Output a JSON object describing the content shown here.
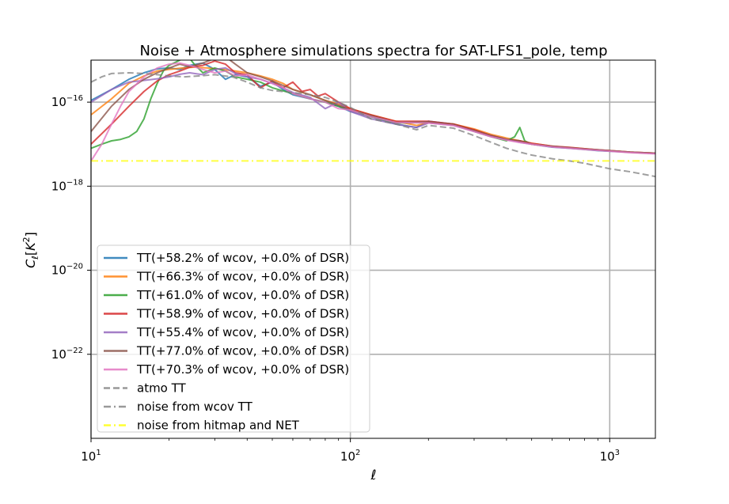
{
  "chart_data": {
    "type": "line",
    "title": "Noise + Atmosphere simulations spectra for SAT-LFS1_pole, temp",
    "xlabel": "ℓ",
    "ylabel": "C_ℓ[K^2]",
    "xscale": "log",
    "yscale": "log",
    "xlim": [
      10,
      1500
    ],
    "ylim": [
      1e-24,
      1e-15
    ],
    "grid": true,
    "legend_position": "lower-left",
    "x_ticks": [
      {
        "value": 10,
        "label": "10",
        "sup": "1"
      },
      {
        "value": 100,
        "label": "10",
        "sup": "2"
      },
      {
        "value": 1000,
        "label": "10",
        "sup": "3"
      }
    ],
    "y_ticks": [
      {
        "value": 1e-16,
        "label": "10",
        "sup": "−16"
      },
      {
        "value": 1e-18,
        "label": "10",
        "sup": "−18"
      },
      {
        "value": 1e-20,
        "label": "10",
        "sup": "−20"
      },
      {
        "value": 1e-22,
        "label": "10",
        "sup": "−22"
      }
    ],
    "series": [
      {
        "name": "TT(+58.2% of wcov, +0.0% of DSR)",
        "color": "#1f77b4",
        "style": "solid",
        "x": [
          10,
          12,
          14,
          16,
          18,
          20,
          22,
          24,
          27,
          30,
          33,
          36,
          40,
          45,
          50,
          55,
          60,
          70,
          80,
          90,
          100,
          120,
          150,
          180,
          200,
          250,
          300,
          350,
          400,
          450,
          500,
          600,
          700,
          800,
          900,
          1000,
          1200,
          1500
        ],
        "y": [
          1.1e-16,
          2e-16,
          3.5e-16,
          5e-16,
          6.2e-16,
          6.5e-16,
          6e-16,
          7.5e-16,
          8.5e-16,
          6e-16,
          3.5e-16,
          4.5e-16,
          4e-16,
          2.4e-16,
          3e-16,
          2e-16,
          1.5e-16,
          1.2e-16,
          1e-16,
          8e-17,
          6e-17,
          4.5e-17,
          3e-17,
          2.5e-17,
          3.5e-17,
          3e-17,
          2.2e-17,
          1.6e-17,
          1.3e-17,
          1.2e-17,
          1e-17,
          8.5e-18,
          8e-18,
          7.5e-18,
          7e-18,
          6.8e-18,
          6.4e-18,
          6e-18
        ]
      },
      {
        "name": "TT(+66.3% of wcov, +0.0% of DSR)",
        "color": "#ff7f0e",
        "style": "solid",
        "x": [
          10,
          12,
          14,
          16,
          18,
          20,
          22,
          25,
          28,
          32,
          36,
          40,
          45,
          50,
          55,
          60,
          70,
          80,
          90,
          100,
          120,
          150,
          180,
          200,
          250,
          300,
          350,
          400,
          450,
          500,
          600,
          700,
          800,
          900,
          1000,
          1200,
          1500
        ],
        "y": [
          5e-17,
          1.2e-16,
          2.8e-16,
          4.2e-16,
          5.5e-16,
          6e-16,
          6.4e-16,
          6.8e-16,
          6.5e-16,
          6e-16,
          5.5e-16,
          5e-16,
          4.2e-16,
          3.5e-16,
          2.8e-16,
          2e-16,
          1.5e-16,
          1.1e-16,
          9e-17,
          7e-17,
          5e-17,
          3.5e-17,
          2.8e-17,
          3.2e-17,
          3e-17,
          2.3e-17,
          1.7e-17,
          1.4e-17,
          1.2e-17,
          1.05e-17,
          9e-18,
          8.3e-18,
          7.8e-18,
          7.3e-18,
          7e-18,
          6.5e-18,
          6.1e-18
        ]
      },
      {
        "name": "TT(+61.0% of wcov, +0.0% of DSR)",
        "color": "#2ca02c",
        "style": "solid",
        "x": [
          10,
          11,
          12,
          13,
          14,
          15,
          16,
          17,
          18,
          19,
          20,
          22,
          23,
          24,
          25,
          27,
          30,
          33,
          36,
          40,
          45,
          50,
          60,
          70,
          80,
          100,
          120,
          150,
          200,
          250,
          300,
          350,
          400,
          430,
          450,
          470,
          500,
          600,
          700,
          800,
          1000,
          1200,
          1500
        ],
        "y": [
          8e-18,
          1e-17,
          1.2e-17,
          1.3e-17,
          1.5e-17,
          2e-17,
          4e-17,
          1.2e-16,
          2.8e-16,
          5.5e-16,
          7.5e-16,
          1e-15,
          1.2e-15,
          1.1e-15,
          8e-16,
          5e-16,
          6.5e-16,
          5.5e-16,
          4e-16,
          3.5e-16,
          3e-16,
          2.2e-16,
          1.6e-16,
          1.2e-16,
          1e-16,
          6.5e-17,
          4.5e-17,
          3.2e-17,
          3.3e-17,
          3e-17,
          2e-17,
          1.5e-17,
          1.2e-17,
          1.5e-17,
          2.5e-17,
          1.2e-17,
          1e-17,
          8.8e-18,
          8.2e-18,
          7.6e-18,
          6.9e-18,
          6.4e-18,
          6e-18
        ]
      },
      {
        "name": "TT(+58.9% of wcov, +0.0% of DSR)",
        "color": "#d62728",
        "style": "solid",
        "x": [
          10,
          12,
          14,
          16,
          18,
          20,
          22,
          24,
          27,
          30,
          33,
          36,
          40,
          45,
          50,
          55,
          60,
          65,
          70,
          75,
          80,
          90,
          100,
          120,
          150,
          200,
          250,
          300,
          350,
          400,
          450,
          500,
          600,
          700,
          800,
          1000,
          1200,
          1500
        ],
        "y": [
          1e-17,
          3e-17,
          8e-17,
          1.8e-16,
          3.2e-16,
          4.5e-16,
          5.5e-16,
          6.8e-16,
          7.5e-16,
          9.5e-16,
          8e-16,
          5e-16,
          4.5e-16,
          2.2e-16,
          3.2e-16,
          2.2e-16,
          3e-16,
          1.8e-16,
          2e-16,
          1.4e-16,
          1.6e-16,
          1e-16,
          7e-17,
          5e-17,
          3.5e-17,
          3.5e-17,
          3e-17,
          2.2e-17,
          1.6e-17,
          1.3e-17,
          1.2e-17,
          1.05e-17,
          9e-18,
          8.4e-18,
          7.8e-18,
          7e-18,
          6.5e-18,
          6.1e-18
        ]
      },
      {
        "name": "TT(+55.4% of wcov, +0.0% of DSR)",
        "color": "#9467bd",
        "style": "solid",
        "x": [
          10,
          12,
          14,
          16,
          18,
          20,
          22,
          24,
          27,
          30,
          33,
          36,
          40,
          45,
          50,
          55,
          60,
          70,
          80,
          90,
          100,
          120,
          150,
          180,
          200,
          250,
          300,
          350,
          400,
          450,
          500,
          600,
          700,
          800,
          1000,
          1200,
          1500
        ],
        "y": [
          1e-16,
          2e-16,
          3e-16,
          3.3e-16,
          3.6e-16,
          4e-16,
          4.6e-16,
          5e-16,
          4.5e-16,
          6e-16,
          6.5e-16,
          4.8e-16,
          4e-16,
          3.5e-16,
          2.8e-16,
          2.2e-16,
          1.7e-16,
          1.3e-16,
          7e-17,
          1e-16,
          6e-17,
          4e-17,
          3e-17,
          2.5e-17,
          3.2e-17,
          2.8e-17,
          2e-17,
          1.5e-17,
          1.3e-17,
          1.1e-17,
          1e-17,
          8.7e-18,
          8.1e-18,
          7.6e-18,
          6.9e-18,
          6.4e-18,
          6e-18
        ]
      },
      {
        "name": "TT(+77.0% of wcov, +0.0% of DSR)",
        "color": "#8c564b",
        "style": "solid",
        "x": [
          10,
          12,
          14,
          16,
          18,
          20,
          22,
          24,
          27,
          30,
          32,
          34,
          36,
          40,
          45,
          50,
          55,
          60,
          70,
          80,
          90,
          100,
          120,
          150,
          200,
          250,
          300,
          350,
          400,
          450,
          500,
          600,
          700,
          800,
          1000,
          1200,
          1500
        ],
        "y": [
          2e-17,
          8e-17,
          2e-16,
          3.5e-16,
          5e-16,
          6.5e-16,
          8e-16,
          7e-16,
          8.5e-16,
          1.1e-15,
          1.2e-15,
          1.05e-15,
          8e-16,
          5e-16,
          4e-16,
          3.2e-16,
          2.5e-16,
          2e-16,
          1.5e-16,
          1.1e-16,
          8.5e-17,
          6.5e-17,
          4.8e-17,
          3.3e-17,
          3.4e-17,
          2.9e-17,
          2.1e-17,
          1.6e-17,
          1.3e-17,
          1.2e-17,
          1e-17,
          8.9e-18,
          8.2e-18,
          7.7e-18,
          7e-18,
          6.5e-18,
          6.1e-18
        ]
      },
      {
        "name": "TT(+70.3% of wcov, +0.0% of DSR)",
        "color": "#e377c2",
        "style": "solid",
        "x": [
          10,
          11,
          12,
          13,
          14,
          16,
          18,
          20,
          22,
          24,
          27,
          30,
          33,
          36,
          40,
          45,
          50,
          55,
          60,
          70,
          80,
          90,
          100,
          120,
          150,
          200,
          250,
          300,
          350,
          400,
          450,
          500,
          600,
          700,
          800,
          1000,
          1200,
          1500
        ],
        "y": [
          4e-18,
          1e-17,
          3e-17,
          8e-17,
          1.8e-16,
          4e-16,
          6.5e-16,
          8e-16,
          8.5e-16,
          7.5e-16,
          6e-16,
          5e-16,
          5.5e-16,
          4.2e-16,
          4.5e-16,
          3.5e-16,
          2.8e-16,
          2.2e-16,
          1.6e-16,
          1.2e-16,
          1e-16,
          7e-17,
          6.5e-17,
          4.5e-17,
          3.3e-17,
          3.2e-17,
          2.8e-17,
          2e-17,
          1.5e-17,
          1.25e-17,
          1.1e-17,
          1e-17,
          8.6e-18,
          8e-18,
          7.5e-18,
          6.8e-18,
          6.3e-18,
          5.9e-18
        ]
      },
      {
        "name": "atmo TT",
        "color": "#7f7f7f",
        "style": "dashed",
        "x": [
          10,
          11,
          12,
          14,
          16,
          18,
          20,
          23,
          26,
          30,
          35,
          40,
          45,
          50,
          60,
          70,
          80,
          90,
          100,
          120,
          150,
          180,
          200,
          250,
          300,
          350,
          400,
          450,
          500,
          600,
          700,
          800,
          900,
          1000,
          1200,
          1500
        ],
        "y": [
          3e-16,
          4e-16,
          4.8e-16,
          5e-16,
          4.8e-16,
          4.5e-16,
          4.2e-16,
          4e-16,
          4.2e-16,
          4.5e-16,
          4e-16,
          3e-16,
          2.2e-16,
          1.9e-16,
          1.7e-16,
          1.5e-16,
          1.3e-16,
          1e-16,
          7.5e-17,
          4e-17,
          3e-17,
          2.2e-17,
          2.8e-17,
          2.4e-17,
          1.6e-17,
          1.1e-17,
          8e-18,
          6.5e-18,
          5.5e-18,
          4.5e-18,
          4e-18,
          3.5e-18,
          3e-18,
          2.6e-18,
          2.2e-18,
          1.7e-18
        ]
      },
      {
        "name": "noise from wcov TT",
        "color": "#7f7f7f",
        "style": "dashdot",
        "x": [],
        "y": []
      },
      {
        "name": "noise from hitmap and NET",
        "color": "#ffff00",
        "style": "dashdot",
        "x": [
          10,
          1500
        ],
        "y": [
          4e-18,
          4e-18
        ]
      }
    ]
  }
}
